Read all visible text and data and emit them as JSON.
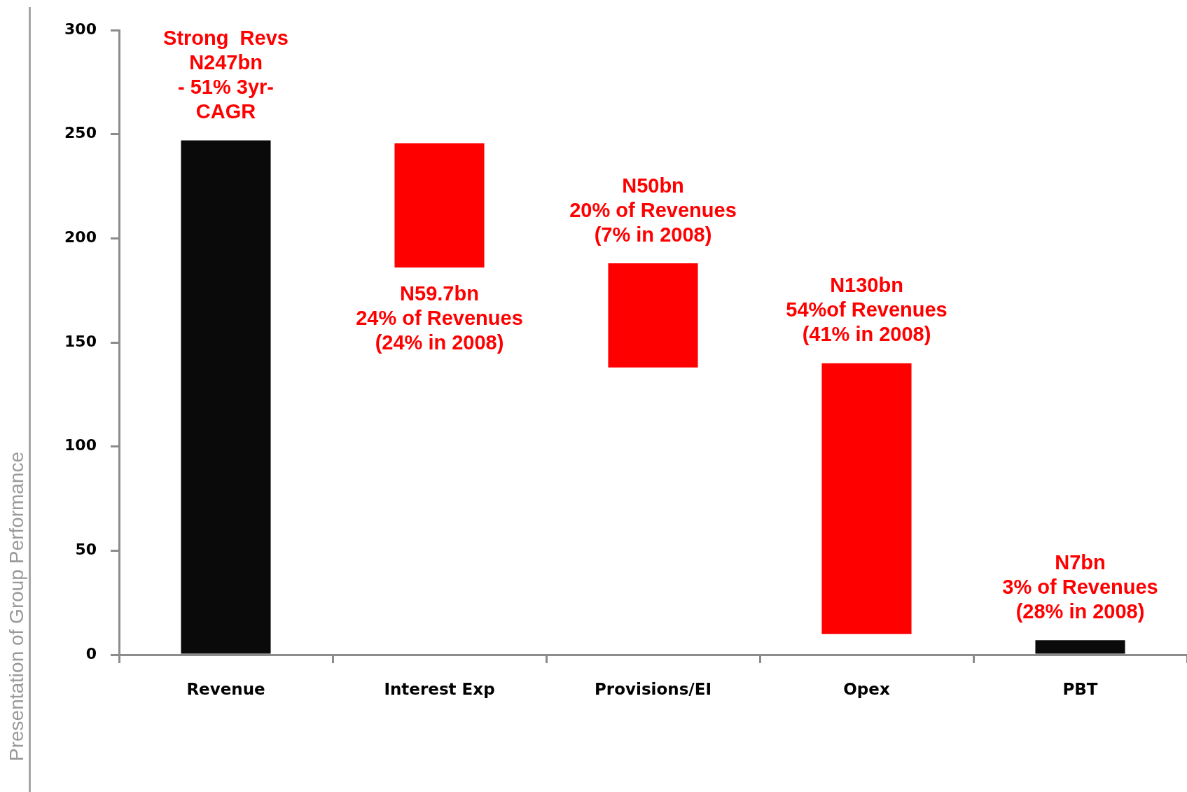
{
  "chart_data": {
    "type": "bar",
    "categories": [
      "Revenue",
      "Interest Exp",
      "Provisions/EI",
      "Opex",
      "PBT"
    ],
    "values": [
      247,
      59.7,
      50,
      130,
      7
    ],
    "base": [
      0,
      186,
      138,
      10,
      0
    ],
    "colors": [
      "#0a0a0a",
      "#ff0000",
      "#ff0000",
      "#ff0000",
      "#0a0a0a"
    ],
    "ylim": [
      0,
      300
    ],
    "yticks": [
      0,
      50,
      100,
      150,
      200,
      250,
      300
    ],
    "annotations": [
      {
        "text": "Strong  Revs\nN247bn\n- 51% 3yr-\nCAGR",
        "x": "Revenue",
        "y": 247
      },
      {
        "text": "N59.7bn\n24% of Revenues\n(24% in 2008)",
        "x": "Interest Exp",
        "y": 186
      },
      {
        "text": "N50bn\n20% of Revenues\n(7% in 2008)",
        "x": "Provisions/EI",
        "y": 188
      },
      {
        "text": "N130bn\n54%of Revenues\n(41% in 2008)",
        "x": "Opex",
        "y": 140
      },
      {
        "text": "N7bn\n3% of Revenues\n(28% in 2008)",
        "x": "PBT",
        "y": 7
      },
      "Presentation of Group Performance"
    ]
  }
}
